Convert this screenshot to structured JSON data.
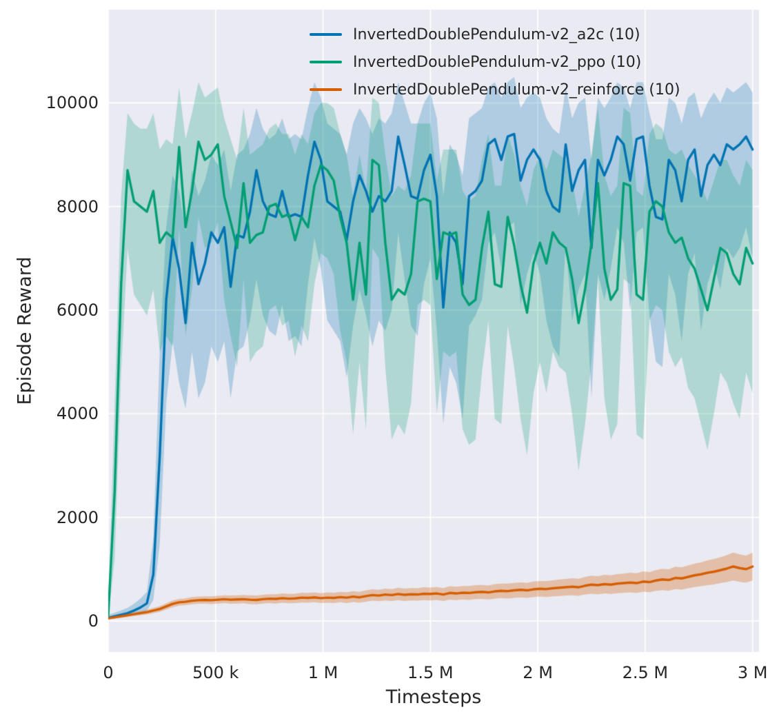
{
  "figure": {
    "background": "#ffffff",
    "plot_background": "#eaeaf2",
    "grid_color": "#ffffff",
    "text_color": "#262626"
  },
  "chart_data": {
    "type": "line",
    "title": "",
    "xlabel": "Timesteps",
    "ylabel": "Episode Reward",
    "grid": true,
    "legend_position": "upper center, inside plot, no frame",
    "xlim": [
      0,
      3030000
    ],
    "ylim": [
      -600,
      11800
    ],
    "x_ticks": {
      "values": [
        0,
        500000,
        1000000,
        1500000,
        2000000,
        2500000,
        3000000
      ],
      "labels": [
        "0",
        "500 k",
        "1 M",
        "1.5 M",
        "2 M",
        "2.5 M",
        "3 M"
      ]
    },
    "y_ticks": {
      "values": [
        0,
        2000,
        4000,
        6000,
        8000,
        10000
      ],
      "labels": [
        "0",
        "2000",
        "4000",
        "6000",
        "8000",
        "10000"
      ]
    },
    "x_start": 0,
    "x_step": 30000,
    "series": [
      {
        "name": "InvertedDoublePendulum-v2_a2c (10)",
        "color": "#0173b2",
        "band_alpha": 0.25,
        "mean": [
          60,
          90,
          120,
          150,
          200,
          260,
          340,
          900,
          3200,
          6200,
          7400,
          6800,
          5750,
          7300,
          6500,
          6900,
          7500,
          7300,
          7600,
          6450,
          7450,
          7400,
          7900,
          8700,
          8100,
          7850,
          7800,
          8300,
          7800,
          7850,
          7800,
          8600,
          9250,
          8900,
          8100,
          8000,
          7900,
          7350,
          8100,
          8600,
          8300,
          7900,
          8200,
          8100,
          8300,
          9350,
          8800,
          8200,
          8150,
          8700,
          9000,
          8200,
          6050,
          7500,
          7300,
          6500,
          8200,
          8300,
          8500,
          9200,
          9300,
          8900,
          9350,
          9400,
          8500,
          8900,
          9100,
          8900,
          8300,
          8000,
          7900,
          9200,
          8300,
          8700,
          8900,
          7200,
          8900,
          8600,
          8900,
          9350,
          9200,
          8500,
          9300,
          9350,
          8400,
          7800,
          7750,
          8900,
          8700,
          8100,
          8900,
          9100,
          8200,
          8800,
          9000,
          8800,
          9200,
          9100,
          9200,
          9350,
          9100
        ],
        "band_low": [
          30,
          50,
          70,
          90,
          120,
          150,
          200,
          400,
          1500,
          4200,
          5400,
          4600,
          4100,
          5200,
          4300,
          4600,
          5300,
          5000,
          5400,
          4300,
          5200,
          5300,
          5800,
          6600,
          5900,
          5600,
          5500,
          6100,
          5400,
          5500,
          5300,
          6500,
          7400,
          6800,
          5800,
          5600,
          5400,
          4700,
          5700,
          6400,
          5900,
          5300,
          5800,
          5600,
          6000,
          7500,
          6600,
          5700,
          5500,
          6500,
          7000,
          5600,
          3800,
          4900,
          4600,
          3900,
          5700,
          5900,
          6200,
          7300,
          7500,
          6800,
          7600,
          7700,
          6100,
          6700,
          7100,
          6700,
          5800,
          5300,
          5100,
          7300,
          5800,
          6400,
          6700,
          4300,
          6700,
          6200,
          6800,
          7600,
          7300,
          6000,
          7500,
          7600,
          5900,
          5000,
          4900,
          6700,
          6300,
          5400,
          6700,
          7100,
          5600,
          6500,
          6900,
          6400,
          7200,
          7000,
          7200,
          7600,
          7000
        ],
        "band_high": [
          120,
          160,
          200,
          250,
          330,
          430,
          560,
          1600,
          5200,
          7600,
          8600,
          8300,
          7500,
          8700,
          8200,
          8500,
          9000,
          8800,
          9100,
          8300,
          9000,
          9100,
          9400,
          9900,
          9500,
          9300,
          9400,
          9700,
          9300,
          9400,
          9300,
          9900,
          10400,
          10100,
          9600,
          9500,
          9400,
          9000,
          9600,
          9900,
          9700,
          9400,
          9700,
          9600,
          9800,
          10400,
          10000,
          9600,
          9600,
          10000,
          10200,
          9700,
          8200,
          9200,
          9000,
          8600,
          9700,
          9800,
          9900,
          10300,
          10400,
          10100,
          10400,
          10500,
          9900,
          10100,
          10200,
          10100,
          9700,
          9500,
          9400,
          10300,
          9700,
          10000,
          10100,
          8900,
          10100,
          9900,
          10100,
          10400,
          10300,
          9900,
          10400,
          10400,
          9800,
          9300,
          9300,
          10100,
          10000,
          9600,
          10100,
          10200,
          9700,
          10000,
          10200,
          10000,
          10300,
          10200,
          10300,
          10400,
          10200
        ]
      },
      {
        "name": "InvertedDoublePendulum-v2_ppo (10)",
        "color": "#029e73",
        "band_alpha": 0.25,
        "mean": [
          100,
          2500,
          6500,
          8700,
          8100,
          8000,
          7900,
          8300,
          7300,
          7500,
          7400,
          9150,
          7600,
          8300,
          9250,
          8900,
          9000,
          9200,
          8200,
          7700,
          7200,
          8450,
          7300,
          7450,
          7500,
          8000,
          8050,
          7800,
          7850,
          7350,
          7800,
          7600,
          8400,
          8800,
          8700,
          8500,
          7800,
          7300,
          6200,
          7300,
          6300,
          8900,
          8800,
          7300,
          6200,
          6400,
          6300,
          6700,
          8100,
          8150,
          8100,
          6600,
          7500,
          7450,
          7500,
          6300,
          6100,
          6200,
          7200,
          7900,
          6500,
          6450,
          7800,
          7250,
          6500,
          5950,
          6900,
          7300,
          6900,
          7500,
          7300,
          7200,
          6600,
          5750,
          6400,
          7300,
          8450,
          6800,
          6200,
          6400,
          8450,
          8400,
          6300,
          6200,
          7900,
          8100,
          8000,
          7500,
          7300,
          7400,
          7000,
          6800,
          6400,
          6000,
          6600,
          7200,
          7100,
          6700,
          6500,
          7200,
          6900
        ],
        "band_low": [
          60,
          1200,
          4800,
          7200,
          6300,
          6100,
          5900,
          6400,
          5200,
          5500,
          5300,
          7600,
          5500,
          6400,
          7800,
          7200,
          7300,
          7700,
          6200,
          5500,
          4900,
          6600,
          5000,
          5200,
          5300,
          6000,
          6100,
          5700,
          5800,
          5100,
          5700,
          5400,
          6500,
          7100,
          7000,
          6700,
          5600,
          5000,
          3600,
          5000,
          3700,
          7200,
          7000,
          4900,
          3500,
          3800,
          3600,
          4200,
          6100,
          6200,
          6100,
          4000,
          5200,
          5100,
          5200,
          3700,
          3400,
          3500,
          4800,
          5800,
          3900,
          3800,
          5700,
          4900,
          3900,
          3200,
          4400,
          5000,
          4400,
          5200,
          4900,
          4800,
          4000,
          2900,
          3800,
          5000,
          6600,
          4300,
          3500,
          3800,
          6600,
          6500,
          3600,
          3500,
          5800,
          6100,
          6000,
          5200,
          4900,
          5100,
          4500,
          4300,
          3800,
          3300,
          4000,
          4800,
          4600,
          4200,
          3900,
          4800,
          4400
        ],
        "band_high": [
          200,
          4200,
          8200,
          9800,
          9600,
          9500,
          9500,
          9800,
          9100,
          9300,
          9200,
          10300,
          9300,
          9800,
          10400,
          10100,
          10200,
          10300,
          9700,
          9300,
          8900,
          9900,
          9000,
          9100,
          9200,
          9500,
          9600,
          9400,
          9400,
          9000,
          9400,
          9200,
          9800,
          10000,
          10000,
          9900,
          9400,
          9000,
          8200,
          9000,
          8300,
          10100,
          10000,
          9000,
          8200,
          8400,
          8300,
          8600,
          9600,
          9600,
          9600,
          8500,
          9100,
          9100,
          9100,
          8300,
          8100,
          8200,
          8900,
          9400,
          8400,
          8400,
          9400,
          9000,
          8400,
          8000,
          8700,
          9000,
          8700,
          9100,
          9000,
          8900,
          8500,
          7800,
          8400,
          9000,
          9900,
          8600,
          8200,
          8400,
          9900,
          9800,
          8300,
          8200,
          9400,
          9600,
          9500,
          9100,
          9000,
          9100,
          8800,
          8600,
          8400,
          8100,
          8500,
          8900,
          8900,
          8600,
          8400,
          8900,
          8700
        ]
      },
      {
        "name": "InvertedDoublePendulum-v2_reinforce (10)",
        "color": "#d55e00",
        "band_alpha": 0.3,
        "mean": [
          50,
          70,
          90,
          110,
          130,
          150,
          170,
          200,
          230,
          280,
          330,
          360,
          370,
          390,
          400,
          405,
          400,
          410,
          420,
          410,
          415,
          420,
          410,
          405,
          420,
          430,
          425,
          440,
          430,
          435,
          450,
          445,
          455,
          440,
          450,
          445,
          460,
          450,
          470,
          455,
          480,
          500,
          490,
          510,
          500,
          520,
          505,
          515,
          510,
          525,
          520,
          530,
          510,
          540,
          530,
          545,
          540,
          555,
          560,
          550,
          570,
          580,
          575,
          590,
          600,
          590,
          610,
          620,
          615,
          630,
          640,
          650,
          660,
          650,
          680,
          700,
          690,
          710,
          700,
          720,
          730,
          740,
          730,
          760,
          750,
          780,
          800,
          790,
          830,
          820,
          850,
          880,
          900,
          930,
          950,
          980,
          1010,
          1050,
          1020,
          1000,
          1050
        ],
        "band_low": [
          30,
          45,
          60,
          75,
          95,
          110,
          125,
          150,
          175,
          220,
          265,
          295,
          305,
          320,
          330,
          335,
          325,
          335,
          345,
          330,
          335,
          340,
          325,
          320,
          335,
          345,
          335,
          350,
          340,
          345,
          355,
          350,
          360,
          345,
          350,
          345,
          360,
          345,
          365,
          350,
          370,
          390,
          380,
          395,
          385,
          400,
          385,
          395,
          390,
          400,
          395,
          405,
          385,
          410,
          400,
          415,
          405,
          420,
          425,
          415,
          430,
          440,
          430,
          445,
          455,
          445,
          460,
          470,
          460,
          475,
          480,
          490,
          495,
          485,
          510,
          525,
          515,
          530,
          520,
          535,
          545,
          550,
          540,
          565,
          555,
          580,
          595,
          585,
          615,
          605,
          630,
          655,
          670,
          690,
          705,
          730,
          750,
          780,
          755,
          740,
          780
        ],
        "band_high": [
          70,
          95,
          120,
          145,
          165,
          190,
          215,
          250,
          285,
          340,
          395,
          425,
          435,
          460,
          470,
          475,
          475,
          485,
          495,
          490,
          495,
          500,
          495,
          490,
          505,
          515,
          515,
          530,
          520,
          525,
          545,
          540,
          550,
          535,
          550,
          545,
          560,
          555,
          575,
          560,
          590,
          610,
          600,
          625,
          615,
          640,
          625,
          635,
          630,
          650,
          645,
          655,
          635,
          670,
          660,
          675,
          675,
          690,
          695,
          685,
          710,
          720,
          720,
          735,
          745,
          735,
          760,
          770,
          770,
          785,
          800,
          810,
          825,
          815,
          850,
          875,
          865,
          890,
          880,
          905,
          915,
          930,
          920,
          955,
          945,
          980,
          1005,
          995,
          1045,
          1035,
          1070,
          1105,
          1130,
          1170,
          1195,
          1230,
          1270,
          1320,
          1285,
          1260,
          1320
        ]
      }
    ]
  }
}
